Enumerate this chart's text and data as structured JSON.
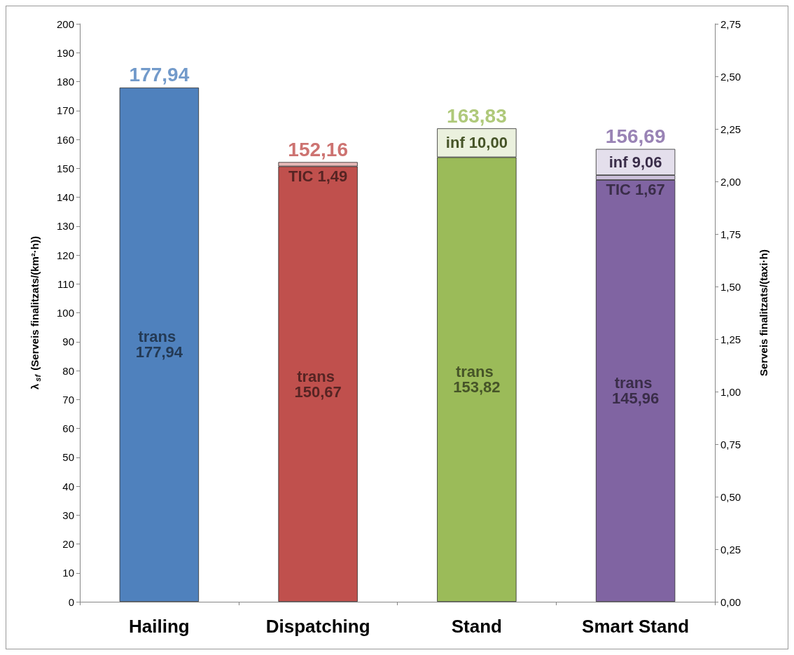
{
  "chart_data": {
    "type": "bar",
    "stacked": true,
    "categories": [
      "Hailing",
      "Dispatching",
      "Stand",
      "Smart Stand"
    ],
    "ylabel": "λ$_{sf}$ (Serveis finalitzats/(km²·h))",
    "y2label": "Serveis finalitzats/(taxi·h)",
    "ylim": [
      0,
      200
    ],
    "yticks": [
      0,
      10,
      20,
      30,
      40,
      50,
      60,
      70,
      80,
      90,
      100,
      110,
      120,
      130,
      140,
      150,
      160,
      170,
      180,
      190,
      200
    ],
    "y2lim": [
      0,
      2.75
    ],
    "y2ticks": [
      {
        "value": 0,
        "label": "0,00"
      },
      {
        "value": 0.25,
        "label": "0,25"
      },
      {
        "value": 0.5,
        "label": "0,50"
      },
      {
        "value": 0.75,
        "label": "0,75"
      },
      {
        "value": 1,
        "label": "1,00"
      },
      {
        "value": 1.25,
        "label": "1,25"
      },
      {
        "value": 1.5,
        "label": "1,50"
      },
      {
        "value": 1.75,
        "label": "1,75"
      },
      {
        "value": 2,
        "label": "2,00"
      },
      {
        "value": 2.25,
        "label": "2,25"
      },
      {
        "value": 2.5,
        "label": "2,50"
      },
      {
        "value": 2.75,
        "label": "2,75"
      }
    ],
    "grid": false,
    "series": [
      {
        "colors": [
          "#4f81bd",
          "#c0504d",
          "#9bbb59",
          "#8064a2"
        ],
        "values": [
          177.94,
          150.67,
          153.82,
          145.96
        ],
        "value_labels": [
          "trans 177,94",
          "trans 150,67",
          "trans 153,82",
          "trans 145,96"
        ]
      },
      {
        "colors": [
          "#4f81bd",
          "#e6b9b8",
          "#9bbb59",
          "#ccc0da"
        ],
        "values": [
          null,
          1.49,
          null,
          1.67
        ],
        "value_labels": [
          null,
          "TIC 1,49",
          null,
          "TIC 1,67"
        ]
      },
      {
        "colors": [
          "#4f81bd",
          "#c0504d",
          "#ebf1de",
          "#e4dfec"
        ],
        "values": [
          null,
          null,
          10.0,
          9.06
        ],
        "value_labels": [
          null,
          null,
          "inf 10,00",
          "inf 9,06"
        ]
      }
    ],
    "totals": [
      "177,94",
      "152,16",
      "163,83",
      "156,69"
    ]
  }
}
